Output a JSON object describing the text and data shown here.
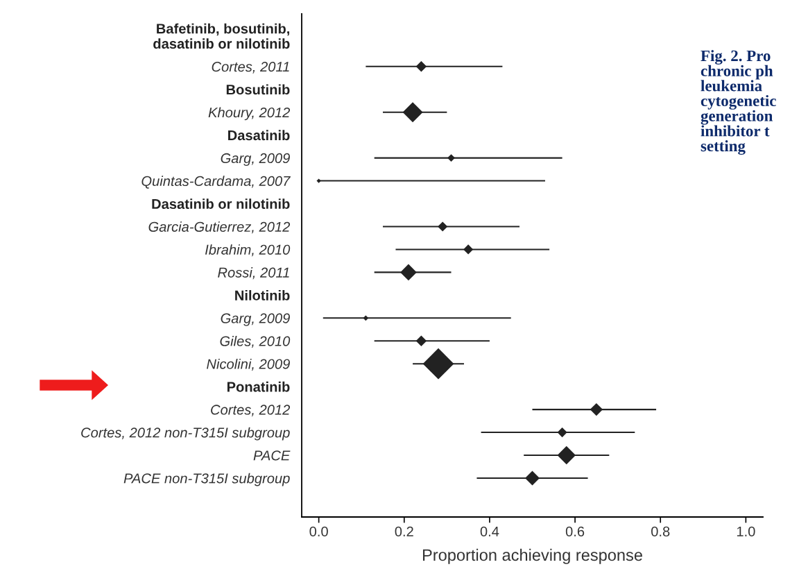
{
  "chart_data": {
    "type": "bubble",
    "orientation": "horizontal",
    "marker": "diamond",
    "color": "#222222",
    "categories": [
      "Bafetinib, bosutinib,\ndasatinib or nilotinib",
      "Cortes, 2011",
      "Bosutinib",
      "Khoury, 2012",
      "Dasatinib",
      "Garg, 2009",
      "Quintas-Cardama, 2007",
      "Dasatinib or nilotinib",
      "Garcia-Gutierrez, 2012",
      "Ibrahim, 2010",
      "Rossi, 2011",
      "Nilotinib",
      "Garg, 2009",
      "Giles, 2010",
      "Nicolini, 2009",
      "Ponatinib",
      "Cortes, 2012",
      "Cortes, 2012 non-T315I subgroup",
      "PACE",
      "PACE non-T315I subgroup"
    ],
    "values": [
      null,
      0.24,
      null,
      0.22,
      null,
      0.31,
      0.0,
      null,
      0.29,
      0.35,
      0.21,
      null,
      0.11,
      0.24,
      0.28,
      null,
      0.65,
      0.57,
      0.58,
      0.5
    ],
    "errors": [
      null,
      [
        0.11,
        0.43
      ],
      null,
      [
        0.15,
        0.3
      ],
      null,
      [
        0.13,
        0.57
      ],
      [
        0.0,
        0.53
      ],
      null,
      [
        0.15,
        0.47
      ],
      [
        0.18,
        0.54
      ],
      [
        0.13,
        0.31
      ],
      null,
      [
        0.01,
        0.45
      ],
      [
        0.13,
        0.4
      ],
      [
        0.22,
        0.34
      ],
      null,
      [
        0.5,
        0.79
      ],
      [
        0.38,
        0.74
      ],
      [
        0.48,
        0.68
      ],
      [
        0.37,
        0.63
      ]
    ],
    "sizes": [
      null,
      0.12,
      null,
      0.42,
      null,
      0.06,
      0.02,
      null,
      0.1,
      0.1,
      0.28,
      null,
      0.03,
      0.12,
      1,
      null,
      0.17,
      0.1,
      0.35,
      0.22
    ],
    "xlabel": "Proportion achieving response",
    "xlim": [
      -0.04,
      1.04
    ],
    "xticks": [
      {
        "value": 0,
        "label": "0.0"
      },
      {
        "value": 0.2,
        "label": "0.2"
      },
      {
        "value": 0.4,
        "label": "0.4"
      },
      {
        "value": 0.6,
        "label": "0.6"
      },
      {
        "value": 0.8,
        "label": "0.8"
      },
      {
        "value": 1,
        "label": "1.0"
      }
    ],
    "grid": false,
    "legend": false,
    "annotations": [
      "Fig. 2. Pro\nchronic ph\nleukemia\ncytogenetic\ngeneration\ninhibitor t\nsetting"
    ]
  }
}
